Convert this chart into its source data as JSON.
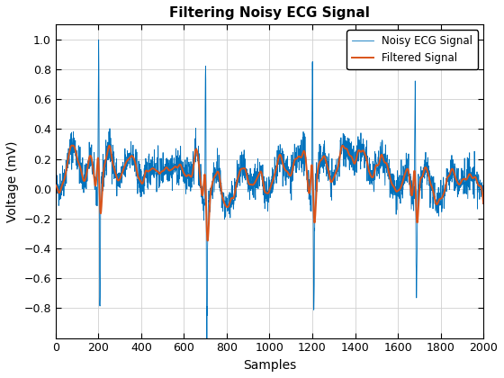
{
  "title": "Filtering Noisy ECG Signal",
  "xlabel": "Samples",
  "ylabel": "Voltage (mV)",
  "noisy_color": "#0072BD",
  "filtered_color": "#D95319",
  "noisy_label": "Noisy ECG Signal",
  "filtered_label": "Filtered Signal",
  "noisy_linewidth": 0.6,
  "filtered_linewidth": 1.4,
  "xlim": [
    0,
    2000
  ],
  "ylim": [
    -1.0,
    1.1
  ],
  "yticks": [
    -0.8,
    -0.6,
    -0.4,
    -0.2,
    0.0,
    0.2,
    0.4,
    0.6,
    0.8,
    1.0
  ],
  "xticks": [
    0,
    200,
    400,
    600,
    800,
    1000,
    1200,
    1400,
    1600,
    1800,
    2000
  ],
  "background_color": "#ffffff",
  "title_fontsize": 11,
  "axis_label_fontsize": 10,
  "n_samples": 2000,
  "random_seed": 42,
  "noise_std": 0.06
}
